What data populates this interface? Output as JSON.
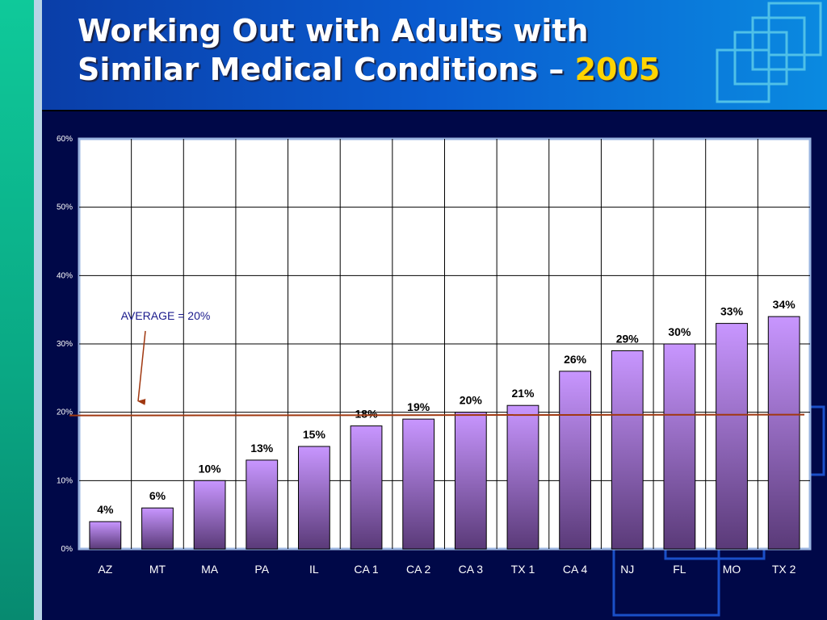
{
  "slide": {
    "title_line1": "Working Out with Adults with",
    "title_line2": "Similar Medical Conditions – ",
    "title_year": "2005"
  },
  "chart_data": {
    "type": "bar",
    "title": "",
    "xlabel": "",
    "ylabel": "",
    "categories": [
      "AZ",
      "MT",
      "MA",
      "PA",
      "IL",
      "CA 1",
      "CA 2",
      "CA 3",
      "TX 1",
      "CA 4",
      "NJ",
      "FL",
      "MO",
      "TX 2"
    ],
    "values": [
      4,
      6,
      10,
      13,
      15,
      18,
      19,
      20,
      21,
      26,
      29,
      30,
      33,
      34
    ],
    "data_labels": [
      "4%",
      "6%",
      "10%",
      "13%",
      "15%",
      "18%",
      "19%",
      "20%",
      "21%",
      "26%",
      "29%",
      "30%",
      "33%",
      "34%"
    ],
    "ylim": [
      0,
      60
    ],
    "yticks": [
      0,
      10,
      20,
      30,
      40,
      50,
      60
    ],
    "ytick_labels": [
      "0%",
      "10%",
      "20%",
      "30%",
      "40%",
      "50%",
      "60%"
    ],
    "grid": true,
    "average": {
      "value": 20,
      "label": "AVERAGE = 20%"
    },
    "colors": {
      "bar_top": "#c896ff",
      "bar_bottom": "#5a3a78",
      "average_line": "#a03810",
      "plot_bg": "#ffffff",
      "plot_border": "#9ab4e0"
    }
  }
}
